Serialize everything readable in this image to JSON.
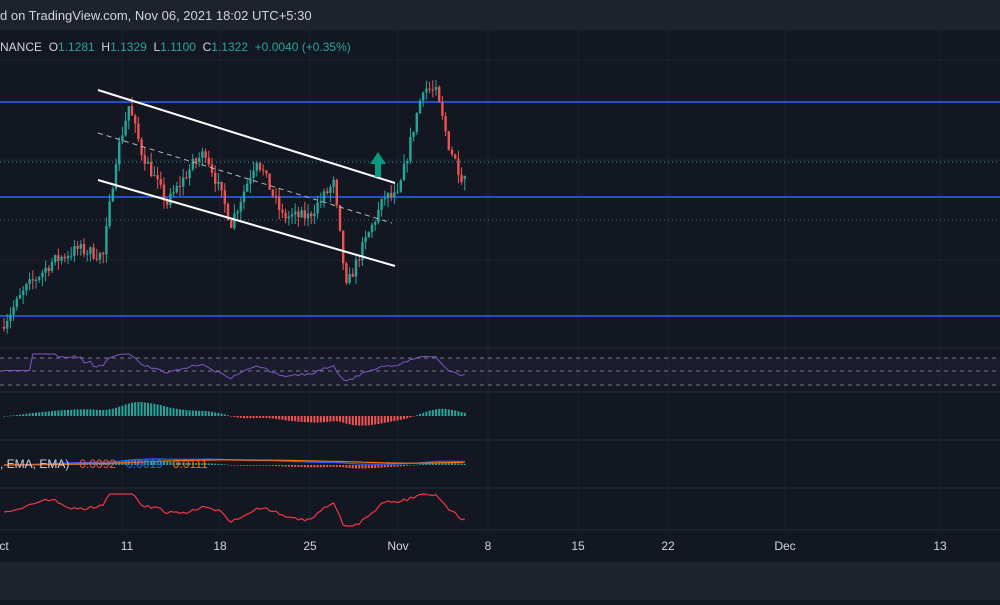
{
  "header": {
    "published": "d on TradingView.com, Nov 06, 2021 18:02 UTC+5:30",
    "exchange": "NANCE",
    "o_label": "O",
    "o_value": "1.1281",
    "h_label": "H",
    "h_value": "1.1329",
    "l_label": "L",
    "l_value": "1.1100",
    "c_label": "C",
    "c_value": "1.1322",
    "change": "+0.0040 (+0.35%)"
  },
  "macd_legend": {
    "label": ", EMA, EMA)",
    "hist_value": "0.0092",
    "macd_value": "0.0019",
    "signal_value": "0.0111"
  },
  "colors": {
    "background": "#131722",
    "up": "#26a69a",
    "down": "#ef5350",
    "level_line": "#2962ff",
    "rsi": "#7e57c2",
    "macd_line": "#2962ff",
    "signal_line": "#ff6d00",
    "bottom_indicator": "#f23645",
    "arrow": "#089981"
  },
  "chart_data": {
    "type": "candlestick",
    "x_axis_labels": [
      "ct",
      "11",
      "18",
      "25",
      "Nov",
      "8",
      "15",
      "22",
      "Dec",
      "13"
    ],
    "x_axis_dates": [
      "2021-10-01",
      "2021-10-11",
      "2021-10-18",
      "2021-10-25",
      "2021-11-01",
      "2021-11-08",
      "2021-11-15",
      "2021-11-22",
      "2021-12-01",
      "2021-12-13"
    ],
    "last_candle": {
      "date": "2021-11-06",
      "open": 1.1281,
      "high": 1.1329,
      "low": 1.11,
      "close": 1.1322
    },
    "price_curve": [
      {
        "date": "2021-10-01",
        "close": 0.9
      },
      {
        "date": "2021-10-03",
        "close": 0.96
      },
      {
        "date": "2021-10-05",
        "close": 1.0
      },
      {
        "date": "2021-10-07",
        "close": 1.02
      },
      {
        "date": "2021-10-09",
        "close": 1.01
      },
      {
        "date": "2021-10-10",
        "close": 1.16
      },
      {
        "date": "2021-10-11",
        "close": 1.24
      },
      {
        "date": "2021-10-12",
        "close": 1.17
      },
      {
        "date": "2021-10-14",
        "close": 1.09
      },
      {
        "date": "2021-10-16",
        "close": 1.15
      },
      {
        "date": "2021-10-17",
        "close": 1.17
      },
      {
        "date": "2021-10-19",
        "close": 1.06
      },
      {
        "date": "2021-10-21",
        "close": 1.16
      },
      {
        "date": "2021-10-23",
        "close": 1.07
      },
      {
        "date": "2021-10-25",
        "close": 1.07
      },
      {
        "date": "2021-10-27",
        "close": 1.12
      },
      {
        "date": "2021-10-28",
        "close": 0.96
      },
      {
        "date": "2021-10-29",
        "close": 1.01
      },
      {
        "date": "2021-10-31",
        "close": 1.1
      },
      {
        "date": "2021-11-01",
        "close": 1.1
      },
      {
        "date": "2021-11-03",
        "close": 1.27
      },
      {
        "date": "2021-11-04",
        "close": 1.26
      },
      {
        "date": "2021-11-05",
        "close": 1.18
      },
      {
        "date": "2021-11-06",
        "close": 1.1322
      }
    ]
  }
}
